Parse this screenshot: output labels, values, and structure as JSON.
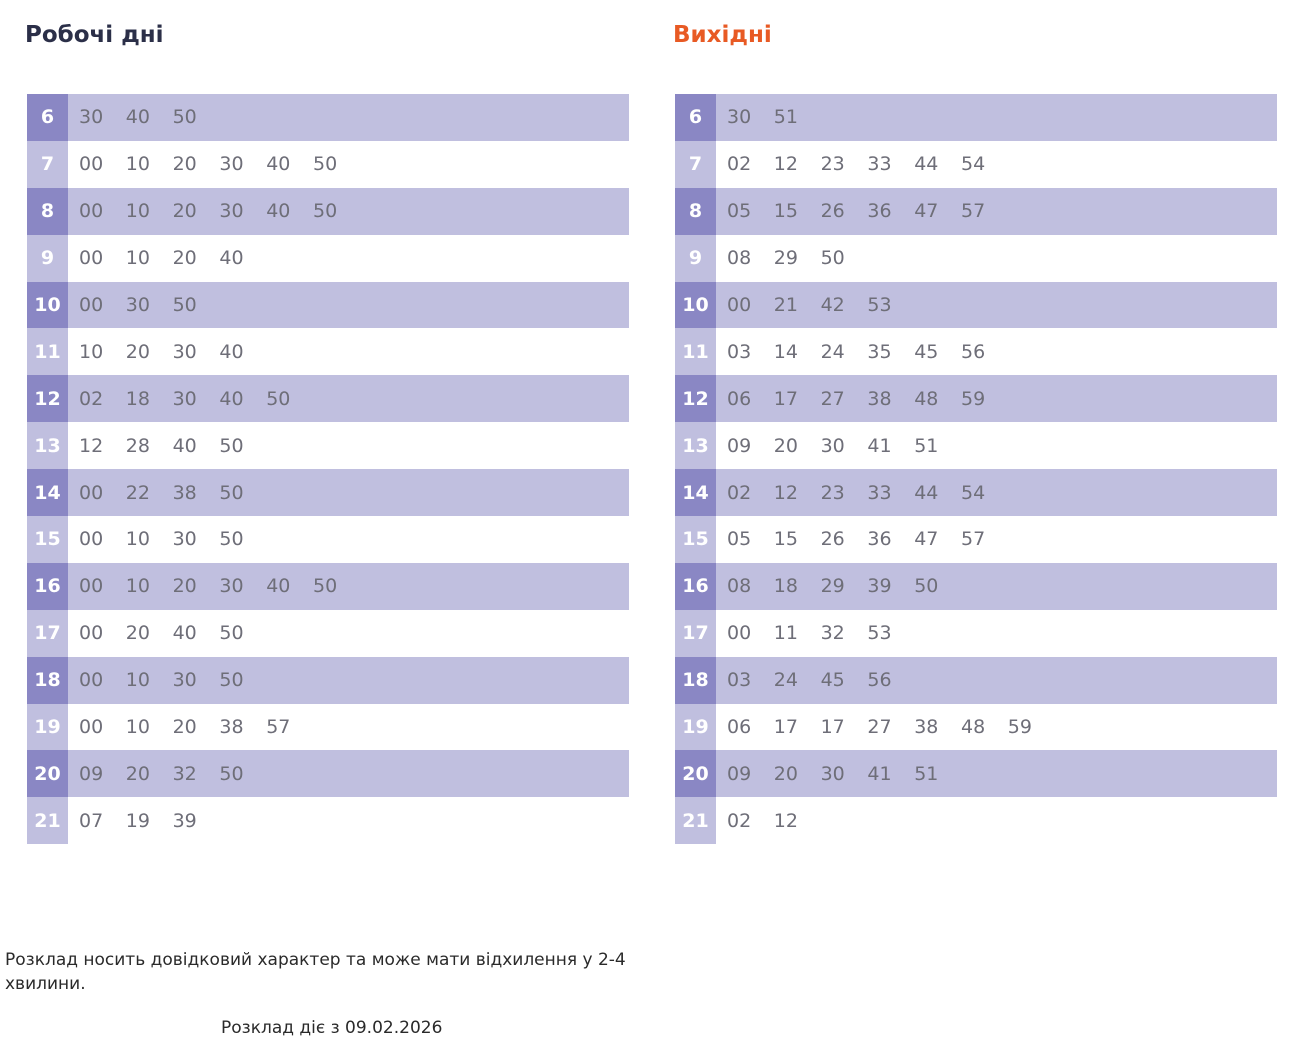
{
  "weekday": {
    "title": "Робочі дні",
    "rows": [
      {
        "hour": "6",
        "minutes": [
          "30",
          "40",
          "50"
        ]
      },
      {
        "hour": "7",
        "minutes": [
          "00",
          "10",
          "20",
          "30",
          "40",
          "50"
        ]
      },
      {
        "hour": "8",
        "minutes": [
          "00",
          "10",
          "20",
          "30",
          "40",
          "50"
        ]
      },
      {
        "hour": "9",
        "minutes": [
          "00",
          "10",
          "20",
          "40"
        ]
      },
      {
        "hour": "10",
        "minutes": [
          "00",
          "30",
          "50"
        ]
      },
      {
        "hour": "11",
        "minutes": [
          "10",
          "20",
          "30",
          "40"
        ]
      },
      {
        "hour": "12",
        "minutes": [
          "02",
          "18",
          "30",
          "40",
          "50"
        ]
      },
      {
        "hour": "13",
        "minutes": [
          "12",
          "28",
          "40",
          "50"
        ]
      },
      {
        "hour": "14",
        "minutes": [
          "00",
          "22",
          "38",
          "50"
        ]
      },
      {
        "hour": "15",
        "minutes": [
          "00",
          "10",
          "30",
          "50"
        ]
      },
      {
        "hour": "16",
        "minutes": [
          "00",
          "10",
          "20",
          "30",
          "40",
          "50"
        ]
      },
      {
        "hour": "17",
        "minutes": [
          "00",
          "20",
          "40",
          "50"
        ]
      },
      {
        "hour": "18",
        "minutes": [
          "00",
          "10",
          "30",
          "50"
        ]
      },
      {
        "hour": "19",
        "minutes": [
          "00",
          "10",
          "20",
          "38",
          "57"
        ]
      },
      {
        "hour": "20",
        "minutes": [
          "09",
          "20",
          "32",
          "50"
        ]
      },
      {
        "hour": "21",
        "minutes": [
          "07",
          "19",
          "39"
        ]
      }
    ]
  },
  "weekend": {
    "title": "Вихідні",
    "rows": [
      {
        "hour": "6",
        "minutes": [
          "30",
          "51"
        ]
      },
      {
        "hour": "7",
        "minutes": [
          "02",
          "12",
          "23",
          "33",
          "44",
          "54"
        ]
      },
      {
        "hour": "8",
        "minutes": [
          "05",
          "15",
          "26",
          "36",
          "47",
          "57"
        ]
      },
      {
        "hour": "9",
        "minutes": [
          "08",
          "29",
          "50"
        ]
      },
      {
        "hour": "10",
        "minutes": [
          "00",
          "21",
          "42",
          "53"
        ]
      },
      {
        "hour": "11",
        "minutes": [
          "03",
          "14",
          "24",
          "35",
          "45",
          "56"
        ]
      },
      {
        "hour": "12",
        "minutes": [
          "06",
          "17",
          "27",
          "38",
          "48",
          "59"
        ]
      },
      {
        "hour": "13",
        "minutes": [
          "09",
          "20",
          "30",
          "41",
          "51"
        ]
      },
      {
        "hour": "14",
        "minutes": [
          "02",
          "12",
          "23",
          "33",
          "44",
          "54"
        ]
      },
      {
        "hour": "15",
        "minutes": [
          "05",
          "15",
          "26",
          "36",
          "47",
          "57"
        ]
      },
      {
        "hour": "16",
        "minutes": [
          "08",
          "18",
          "29",
          "39",
          "50"
        ]
      },
      {
        "hour": "17",
        "minutes": [
          "00",
          "11",
          "32",
          "53"
        ]
      },
      {
        "hour": "18",
        "minutes": [
          "03",
          "24",
          "45",
          "56"
        ]
      },
      {
        "hour": "19",
        "minutes": [
          "06",
          "17",
          "17",
          "27",
          "38",
          "48",
          "59"
        ]
      },
      {
        "hour": "20",
        "minutes": [
          "09",
          "20",
          "30",
          "41",
          "51"
        ]
      },
      {
        "hour": "21",
        "minutes": [
          "02",
          "12"
        ]
      }
    ]
  },
  "note": "Розклад носить довідковий характер та може мати відхилення у 2-4 хвилини.",
  "valid_from": "Розклад діє з 09.02.2026",
  "colors": {
    "weekday_title": "#2b2f48",
    "weekend_title": "#e85a24",
    "hour_dark": "#8a87c4",
    "row_light": "#c0bfdf"
  }
}
